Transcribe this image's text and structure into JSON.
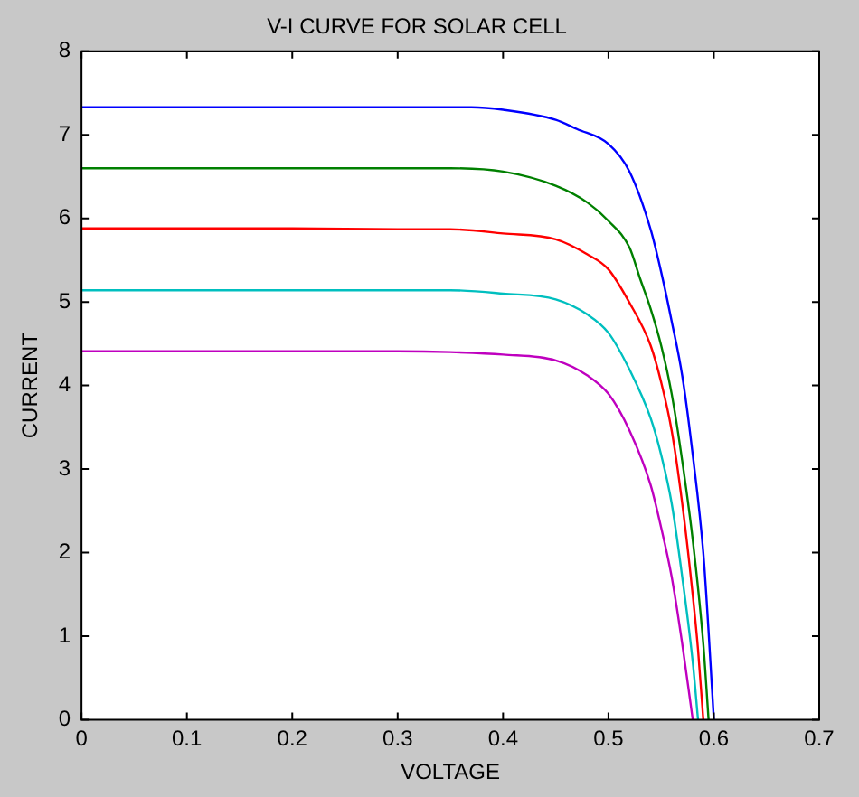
{
  "chart_data": {
    "type": "line",
    "title": "V-I CURVE FOR SOLAR CELL",
    "xlabel": "VOLTAGE",
    "ylabel": "CURRENT",
    "xlim": [
      0,
      0.7
    ],
    "xticks": [
      0,
      0.1,
      0.2,
      0.3,
      0.4,
      0.5,
      0.6,
      0.7
    ],
    "ylim": [
      0,
      8
    ],
    "yticks": [
      0,
      1,
      2,
      3,
      4,
      5,
      6,
      7,
      8
    ],
    "grid": false,
    "legend": false,
    "marker": "none",
    "line_style": "solid",
    "series": [
      {
        "color": "#0000ff",
        "x": [
          0,
          0.1,
          0.2,
          0.3,
          0.37,
          0.4,
          0.45,
          0.47,
          0.5,
          0.52,
          0.54,
          0.55,
          0.56,
          0.57,
          0.58,
          0.59,
          0.595,
          0.6
        ],
        "values": [
          7.33,
          7.33,
          7.33,
          7.33,
          7.33,
          7.3,
          7.18,
          7.07,
          6.89,
          6.56,
          5.87,
          5.36,
          4.77,
          4.12,
          3.17,
          2.0,
          1.06,
          0
        ]
      },
      {
        "color": "#008000",
        "x": [
          0,
          0.1,
          0.2,
          0.3,
          0.35,
          0.4,
          0.45,
          0.48,
          0.5,
          0.52,
          0.53,
          0.54,
          0.55,
          0.56,
          0.57,
          0.58,
          0.59,
          0.595
        ],
        "values": [
          6.6,
          6.6,
          6.6,
          6.6,
          6.6,
          6.56,
          6.39,
          6.19,
          5.97,
          5.65,
          5.28,
          4.92,
          4.48,
          3.9,
          3.1,
          2.15,
          0.91,
          0
        ]
      },
      {
        "color": "#ff0000",
        "x": [
          0,
          0.1,
          0.2,
          0.3,
          0.35,
          0.4,
          0.45,
          0.48,
          0.5,
          0.52,
          0.54,
          0.55,
          0.56,
          0.57,
          0.58,
          0.585,
          0.59
        ],
        "values": [
          5.88,
          5.88,
          5.88,
          5.87,
          5.87,
          5.82,
          5.75,
          5.57,
          5.39,
          4.99,
          4.48,
          4.04,
          3.46,
          2.59,
          1.49,
          0.84,
          0
        ]
      },
      {
        "color": "#00bfbf",
        "x": [
          0,
          0.1,
          0.2,
          0.3,
          0.35,
          0.4,
          0.45,
          0.48,
          0.5,
          0.52,
          0.54,
          0.55,
          0.56,
          0.57,
          0.58,
          0.585
        ],
        "values": [
          5.14,
          5.14,
          5.14,
          5.14,
          5.14,
          5.1,
          5.03,
          4.85,
          4.63,
          4.19,
          3.61,
          3.17,
          2.59,
          1.71,
          0.69,
          0
        ]
      },
      {
        "color": "#bf00bf",
        "x": [
          0,
          0.1,
          0.2,
          0.3,
          0.35,
          0.4,
          0.45,
          0.48,
          0.5,
          0.52,
          0.54,
          0.55,
          0.56,
          0.57,
          0.58
        ],
        "values": [
          4.41,
          4.41,
          4.41,
          4.41,
          4.4,
          4.37,
          4.3,
          4.12,
          3.9,
          3.46,
          2.81,
          2.3,
          1.71,
          0.91,
          0
        ]
      }
    ]
  }
}
